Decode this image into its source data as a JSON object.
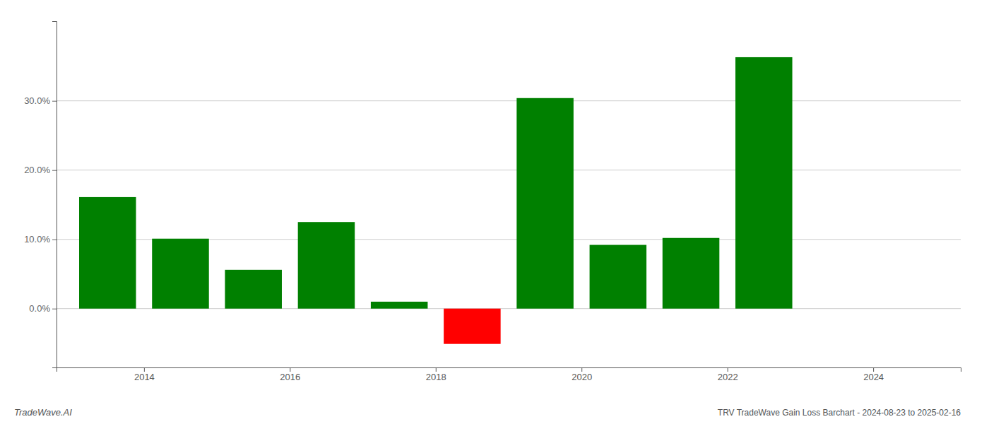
{
  "chart_data": {
    "type": "bar",
    "title": "TRV TradeWave Gain Loss Barchart - 2024-08-23 to 2025-02-16",
    "annotations": [
      "TradeWave.AI"
    ],
    "x": [
      2013,
      2014,
      2015,
      2016,
      2017,
      2018,
      2019,
      2020,
      2021,
      2022,
      2023
    ],
    "values": [
      0.161,
      0.101,
      0.056,
      0.125,
      0.01,
      -0.051,
      0.304,
      0.092,
      0.102,
      0.363,
      0.0
    ],
    "colors": [
      "#008000",
      "#008000",
      "#008000",
      "#008000",
      "#008000",
      "#ff0000",
      "#008000",
      "#008000",
      "#008000",
      "#008000",
      "#008000"
    ],
    "xlim": [
      2012.3,
      2024.7
    ],
    "xticks": [
      {
        "value": 2013.5,
        "label": "2014"
      },
      {
        "value": 2015.5,
        "label": "2016"
      },
      {
        "value": 2017.5,
        "label": "2018"
      },
      {
        "value": 2019.5,
        "label": "2020"
      },
      {
        "value": 2021.5,
        "label": "2022"
      },
      {
        "value": 2023.5,
        "label": "2024"
      }
    ],
    "ylim": [
      -0.085,
      0.415
    ],
    "yticks": [
      {
        "value": 0.0,
        "label": "0.0%"
      },
      {
        "value": 0.1,
        "label": "10.0%"
      },
      {
        "value": 0.2,
        "label": "20.0%"
      },
      {
        "value": 0.3,
        "label": "30.0%"
      }
    ],
    "grid": true
  }
}
